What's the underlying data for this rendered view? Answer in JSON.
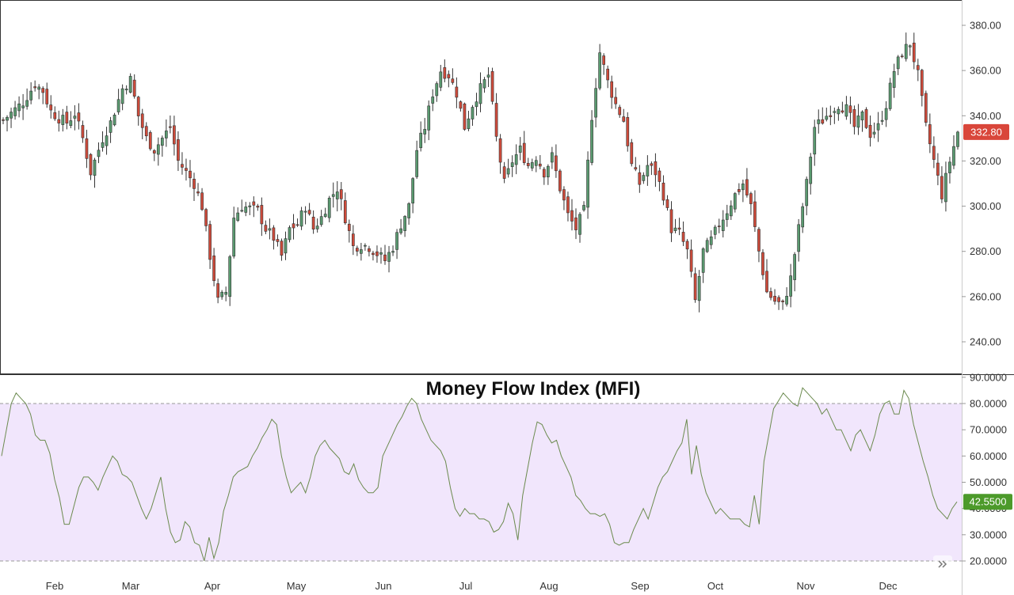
{
  "colors": {
    "up": "#5a9a70",
    "down": "#cf4b3b",
    "wick": "#333333",
    "mfi_line": "#6b8a4e",
    "mfi_band": "#f1e6fc",
    "price_badge": "#d9463a",
    "mfi_badge": "#4c9a2a",
    "band_border": "#999999"
  },
  "icons": {
    "scroll_right": "double-chevron-right-icon"
  },
  "chart_data": [
    {
      "type": "candlestick",
      "title": "",
      "ylim": [
        230,
        388
      ],
      "y_ticks": [
        "380.00",
        "360.00",
        "340.00",
        "320.00",
        "300.00",
        "280.00",
        "260.00",
        "240.00"
      ],
      "x_tick_labels": [
        "Feb",
        "Mar",
        "Apr",
        "May",
        "Jun",
        "Jul",
        "Aug",
        "Sep",
        "Oct",
        "Nov",
        "Dec"
      ],
      "last_price_label": "332.80",
      "last_price": 332.8,
      "trend_anchors": [
        [
          0,
          338
        ],
        [
          5,
          346
        ],
        [
          8,
          354
        ],
        [
          10,
          351
        ],
        [
          12,
          342
        ],
        [
          14,
          339
        ],
        [
          16,
          337
        ],
        [
          18,
          341
        ],
        [
          20,
          330
        ],
        [
          22,
          315
        ],
        [
          25,
          330
        ],
        [
          27,
          337
        ],
        [
          28,
          342
        ],
        [
          30,
          352
        ],
        [
          32,
          356
        ],
        [
          34,
          340
        ],
        [
          36,
          330
        ],
        [
          38,
          325
        ],
        [
          40,
          330
        ],
        [
          42,
          335
        ],
        [
          44,
          320
        ],
        [
          46,
          315
        ],
        [
          48,
          310
        ],
        [
          50,
          300
        ],
        [
          52,
          278
        ],
        [
          54,
          258
        ],
        [
          56,
          262
        ],
        [
          58,
          295
        ],
        [
          60,
          300
        ],
        [
          64,
          298
        ],
        [
          66,
          290
        ],
        [
          68,
          286
        ],
        [
          70,
          278
        ],
        [
          72,
          290
        ],
        [
          74,
          292
        ],
        [
          76,
          300
        ],
        [
          78,
          290
        ],
        [
          80,
          295
        ],
        [
          82,
          303
        ],
        [
          84,
          308
        ],
        [
          86,
          295
        ],
        [
          88,
          282
        ],
        [
          90,
          283
        ],
        [
          92,
          282
        ],
        [
          94,
          279
        ],
        [
          96,
          276
        ],
        [
          98,
          282
        ],
        [
          100,
          292
        ],
        [
          102,
          300
        ],
        [
          104,
          325
        ],
        [
          106,
          335
        ],
        [
          108,
          350
        ],
        [
          110,
          360
        ],
        [
          112,
          358
        ],
        [
          114,
          350
        ],
        [
          116,
          335
        ],
        [
          118,
          345
        ],
        [
          120,
          352
        ],
        [
          122,
          358
        ],
        [
          124,
          330
        ],
        [
          126,
          310
        ],
        [
          128,
          320
        ],
        [
          130,
          325
        ],
        [
          132,
          318
        ],
        [
          134,
          322
        ],
        [
          136,
          315
        ],
        [
          138,
          322
        ],
        [
          140,
          308
        ],
        [
          142,
          296
        ],
        [
          144,
          290
        ],
        [
          146,
          298
        ],
        [
          148,
          340
        ],
        [
          150,
          368
        ],
        [
          152,
          355
        ],
        [
          154,
          345
        ],
        [
          156,
          338
        ],
        [
          158,
          318
        ],
        [
          160,
          310
        ],
        [
          162,
          318
        ],
        [
          164,
          315
        ],
        [
          166,
          305
        ],
        [
          168,
          290
        ],
        [
          170,
          288
        ],
        [
          172,
          280
        ],
        [
          174,
          258
        ],
        [
          176,
          280
        ],
        [
          178,
          285
        ],
        [
          180,
          292
        ],
        [
          182,
          298
        ],
        [
          184,
          305
        ],
        [
          186,
          310
        ],
        [
          188,
          300
        ],
        [
          190,
          280
        ],
        [
          192,
          262
        ],
        [
          194,
          258
        ],
        [
          196,
          256
        ],
        [
          198,
          268
        ],
        [
          200,
          290
        ],
        [
          202,
          310
        ],
        [
          204,
          335
        ],
        [
          206,
          338
        ],
        [
          208,
          342
        ],
        [
          210,
          345
        ],
        [
          212,
          343
        ],
        [
          214,
          335
        ],
        [
          216,
          340
        ],
        [
          218,
          332
        ],
        [
          220,
          335
        ],
        [
          222,
          345
        ],
        [
          224,
          360
        ],
        [
          226,
          368
        ],
        [
          228,
          372
        ],
        [
          230,
          358
        ],
        [
          232,
          335
        ],
        [
          234,
          320
        ],
        [
          236,
          305
        ],
        [
          238,
          320
        ],
        [
          240,
          332.8
        ]
      ]
    },
    {
      "type": "line",
      "title": "Money Flow Index (MFI)",
      "ylim": [
        18,
        91
      ],
      "y_ticks": [
        "90.0000",
        "80.0000",
        "70.0000",
        "60.0000",
        "50.0000",
        "40.0000",
        "30.0000",
        "20.0000"
      ],
      "overbought": 80,
      "oversold": 20,
      "last_value_label": "42.5500",
      "last_value": 42.55,
      "series": [
        {
          "values": [
            60,
            70,
            80,
            84,
            82,
            80,
            76,
            68,
            66,
            66,
            61,
            51,
            44,
            34,
            34,
            41,
            48,
            52,
            52,
            50,
            47,
            52,
            56,
            60,
            58,
            53,
            52,
            50,
            45,
            40,
            36,
            40,
            46,
            52,
            40,
            31,
            27,
            28,
            35,
            33,
            27,
            26,
            20,
            29,
            21,
            27,
            39,
            45,
            52,
            54,
            55,
            56,
            60,
            63,
            67,
            70,
            74,
            72,
            60,
            52,
            46,
            48,
            50,
            46,
            52,
            60,
            64,
            66,
            63,
            61,
            59,
            54,
            53,
            57,
            51,
            48,
            46,
            46,
            48,
            60,
            64,
            68,
            72,
            75,
            79,
            82,
            80,
            74,
            70,
            66,
            64,
            62,
            58,
            48,
            40,
            37,
            40,
            38,
            38,
            36,
            36,
            35,
            31,
            32,
            35,
            42,
            38,
            28,
            45,
            55,
            65,
            73,
            72,
            68,
            65,
            66,
            60,
            56,
            52,
            45,
            43,
            40,
            38,
            38,
            37,
            38,
            34,
            27,
            26,
            27,
            27,
            32,
            36,
            40,
            36,
            42,
            48,
            52,
            54,
            58,
            62,
            65,
            74,
            53,
            64,
            53,
            46,
            42,
            38,
            40,
            38,
            36,
            36,
            36,
            34,
            33,
            45,
            34,
            58,
            68,
            78,
            81,
            84,
            82,
            80,
            79,
            86,
            84,
            82,
            80,
            76,
            78,
            74,
            70,
            70,
            66,
            62,
            68,
            70,
            66,
            62,
            68,
            76,
            80,
            81,
            76,
            76,
            85,
            82,
            72,
            65,
            58,
            52,
            45,
            40,
            38,
            36,
            40,
            42.55
          ]
        }
      ]
    }
  ]
}
